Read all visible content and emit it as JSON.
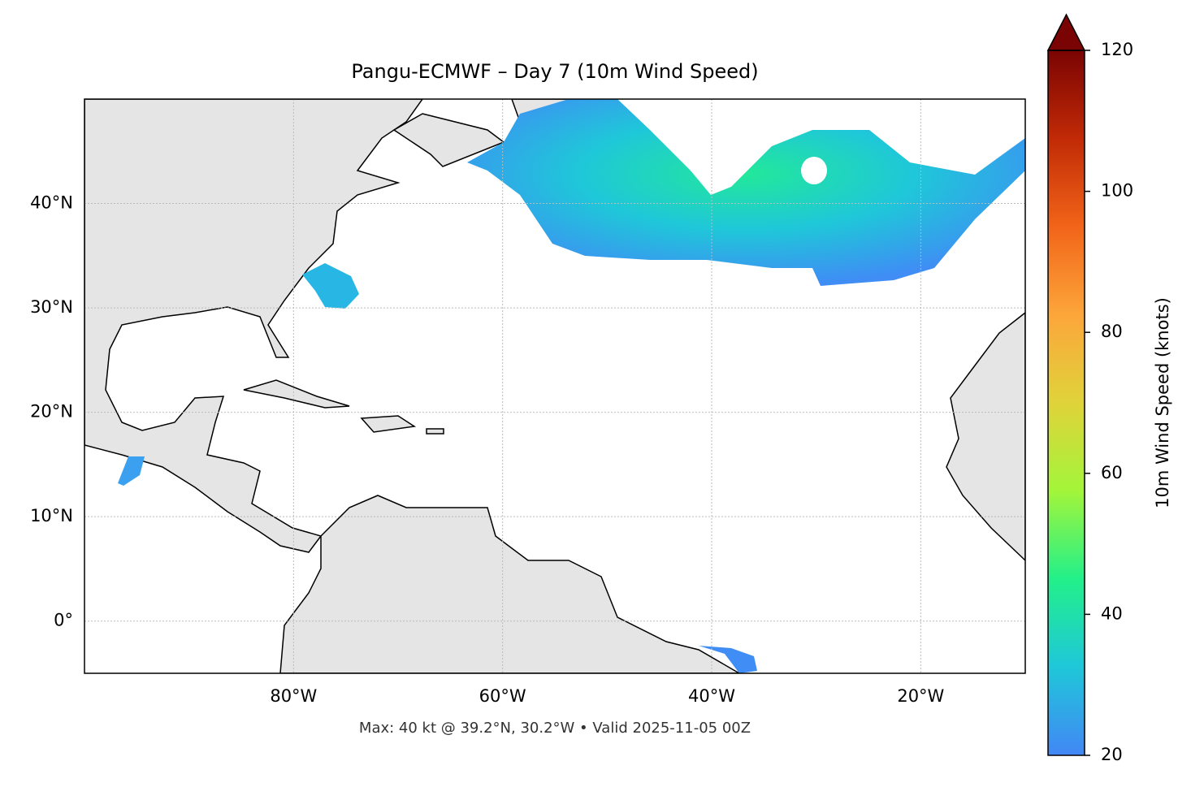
{
  "chart_data": {
    "type": "map",
    "title": "Pangu-ECMWF – Day 7 (10m Wind Speed)",
    "xlim": [
      -100,
      -10
    ],
    "ylim": [
      -5,
      50
    ],
    "xticks": [
      {
        "value": -80,
        "label": "80°W"
      },
      {
        "value": -60,
        "label": "60°W"
      },
      {
        "value": -40,
        "label": "40°W"
      },
      {
        "value": -20,
        "label": "20°W"
      }
    ],
    "yticks": [
      {
        "value": 0,
        "label": "0°"
      },
      {
        "value": 10,
        "label": "10°N"
      },
      {
        "value": 20,
        "label": "20°N"
      },
      {
        "value": 30,
        "label": "30°N"
      },
      {
        "value": 40,
        "label": "40°N"
      }
    ],
    "grid": true,
    "colorbar": {
      "label": "10m Wind Speed (knots)",
      "lim": [
        20,
        120
      ],
      "ticks": [
        20,
        40,
        60,
        80,
        100,
        120
      ],
      "extend": "max",
      "colors": [
        "#4287f5",
        "#1fc7d9",
        "#22f08a",
        "#a3f53a",
        "#e0d33a",
        "#fca63a",
        "#f26419",
        "#c12a06",
        "#7a0403"
      ]
    },
    "footnote": "Max: 40 kt @ 39.2°N, 30.2°W • Valid 2025-11-05 00Z"
  }
}
